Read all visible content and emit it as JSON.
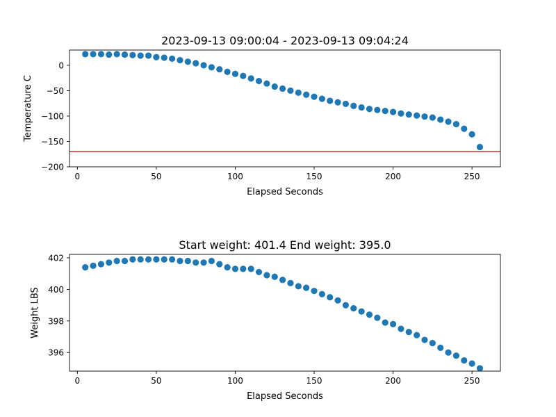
{
  "chart_data": [
    {
      "type": "scatter",
      "title": "2023-09-13 09:00:04 - 2023-09-13 09:04:24",
      "xlabel": "Elapsed Seconds",
      "ylabel": "Temperature C",
      "xlim": [
        -5,
        268
      ],
      "ylim": [
        -200,
        30
      ],
      "xticks": [
        0,
        50,
        100,
        150,
        200,
        250
      ],
      "yticks": [
        -200,
        -150,
        -100,
        -50,
        0
      ],
      "grid": false,
      "series": [
        {
          "x": [
            5,
            10,
            15,
            20,
            25,
            30,
            35,
            40,
            45,
            50,
            55,
            60,
            65,
            70,
            75,
            80,
            85,
            90,
            95,
            100,
            105,
            110,
            115,
            120,
            125,
            130,
            135,
            140,
            145,
            150,
            155,
            160,
            165,
            170,
            175,
            180,
            185,
            190,
            195,
            200,
            205,
            210,
            215,
            220,
            225,
            230,
            235,
            240,
            245,
            250,
            255
          ],
          "values": [
            22,
            22,
            22,
            21,
            22,
            21,
            20,
            19,
            19,
            16,
            15,
            13,
            10,
            7,
            4,
            0,
            -4,
            -8,
            -13,
            -17,
            -21,
            -26,
            -31,
            -36,
            -42,
            -46,
            -50,
            -54,
            -58,
            -62,
            -66,
            -70,
            -73,
            -76,
            -80,
            -83,
            -86,
            -88,
            -90,
            -92,
            -95,
            -97,
            -99,
            -101,
            -103,
            -107,
            -111,
            -116,
            -125,
            -136,
            -161
          ]
        }
      ],
      "reference_line": {
        "y": -170,
        "color": "#d62728"
      },
      "marker_color": "#1f77b4"
    },
    {
      "type": "scatter",
      "title": "Start weight: 401.4 End weight: 395.0",
      "xlabel": "Elapsed Seconds",
      "ylabel": "Weight LBS",
      "xlim": [
        -5,
        268
      ],
      "ylim": [
        394.82,
        402.22
      ],
      "xticks": [
        0,
        50,
        100,
        150,
        200,
        250
      ],
      "yticks": [
        396,
        398,
        400,
        402
      ],
      "grid": false,
      "series": [
        {
          "x": [
            5,
            10,
            15,
            20,
            25,
            30,
            35,
            40,
            45,
            50,
            55,
            60,
            65,
            70,
            75,
            80,
            85,
            90,
            95,
            100,
            105,
            110,
            115,
            120,
            125,
            130,
            135,
            140,
            145,
            150,
            155,
            160,
            165,
            170,
            175,
            180,
            185,
            190,
            195,
            200,
            205,
            210,
            215,
            220,
            225,
            230,
            235,
            240,
            245,
            250,
            255
          ],
          "values": [
            401.4,
            401.5,
            401.6,
            401.7,
            401.8,
            401.8,
            401.9,
            401.9,
            401.9,
            401.9,
            401.9,
            401.9,
            401.8,
            401.8,
            401.7,
            401.7,
            401.8,
            401.6,
            401.4,
            401.3,
            401.3,
            401.3,
            401.1,
            400.9,
            400.8,
            400.6,
            400.4,
            400.2,
            400.1,
            399.9,
            399.7,
            399.5,
            399.3,
            399.0,
            398.8,
            398.6,
            398.4,
            398.2,
            397.9,
            397.8,
            397.5,
            397.3,
            397.1,
            396.8,
            396.6,
            396.3,
            396.0,
            395.8,
            395.5,
            395.3,
            395.0
          ]
        }
      ],
      "marker_color": "#1f77b4"
    }
  ]
}
